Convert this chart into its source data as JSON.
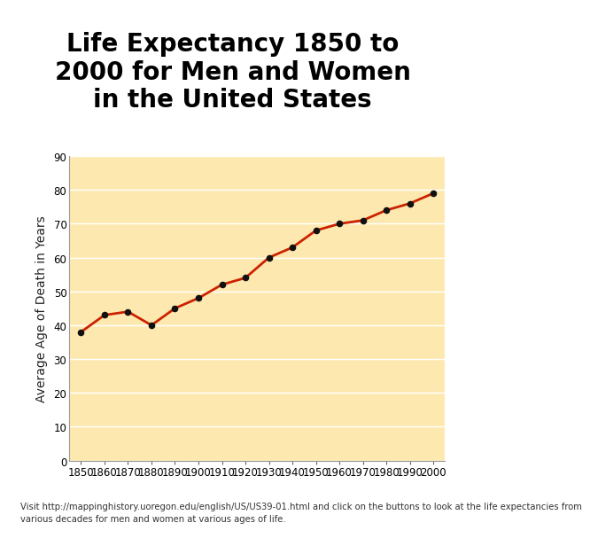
{
  "title": "Life Expectancy 1850 to\n2000 for Men and Women\nin the United States",
  "ylabel": "Average Age of Death in Years",
  "years": [
    1850,
    1860,
    1870,
    1880,
    1890,
    1900,
    1910,
    1920,
    1930,
    1940,
    1950,
    1960,
    1970,
    1980,
    1990,
    2000
  ],
  "values": [
    38,
    43,
    44,
    40,
    45,
    48,
    52,
    54,
    60,
    63,
    68,
    70,
    71,
    74,
    76,
    79
  ],
  "ylim": [
    0,
    90
  ],
  "yticks": [
    0,
    10,
    20,
    30,
    40,
    50,
    60,
    70,
    80,
    90
  ],
  "line_color": "#cc2200",
  "marker_color": "#111111",
  "plot_bg_color": "#fde9b0",
  "outer_bg_color": "#e8956d",
  "figure_bg_color": "#ffffff",
  "title_fontsize": 20,
  "axis_label_fontsize": 10,
  "tick_fontsize": 8.5,
  "footnote": "Visit http://mappinghistory.uoregon.edu/english/US/US39-01.html and click on the buttons to look at the life expectancies from\nvarious decades for men and women at various ages of life.",
  "footnote_fontsize": 7.2,
  "grid_color": "#ffffff",
  "title_color": "#000000"
}
